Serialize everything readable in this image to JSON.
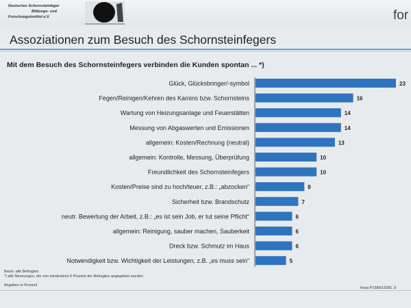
{
  "header": {
    "logo_lines": [
      "Deutsches Schornsteinfeger",
      "Bildungs- und",
      "Forschungsinstitut e.V."
    ],
    "brand": "for"
  },
  "title": "Assoziationen zum Besuch des Schornsteinfegers",
  "subtitle": "Mit dem Besuch des Schornsteinfegers verbinden die Kunden spontan ... *)",
  "chart_data": {
    "type": "bar",
    "orientation": "horizontal",
    "categories": [
      "Glück, Glücksbringer/-symbol",
      "Fegen/Reinigen/Kehren des Kamins bzw. Schornsteins",
      "Wartung von Heizungsanlage und Feuerstätten",
      "Messung von Abgaswerten und Emissionen",
      "allgemein: Kosten/Rechnung (neutral)",
      "allgemein: Kontrolle, Messung, Überprüfung",
      "Freundlichkeit des Schornsteinfegers",
      "Kosten/Preise sind zu hoch/teuer, z.B.: „abzocken“",
      "Sicherheit bzw. Brandschutz",
      "neutr. Bewertung der Arbeit, z.B.: „es ist sein Job, er tut seine Pflicht“",
      "allgemein: Reinigung, sauber machen, Sauberkeit",
      "Dreck bzw. Schmutz im Haus",
      "Notwendigkeit bzw. Wichtigkeit der Leistungen, z.B. „es muss sein“"
    ],
    "values": [
      23,
      16,
      14,
      14,
      13,
      10,
      10,
      8,
      7,
      6,
      6,
      6,
      5
    ],
    "xlim": [
      0,
      23
    ],
    "grid": false,
    "legend": "none",
    "bar_color": "#2f74bf"
  },
  "footnotes": {
    "basis": "Basis: alle Befragten",
    "note": "*) alle Nennungen, die von mindestens 5 Prozent der Befragten angegeben wurden",
    "unit": "Angaben in Prozent",
    "source": "forsa P1586/19281 Ji"
  }
}
